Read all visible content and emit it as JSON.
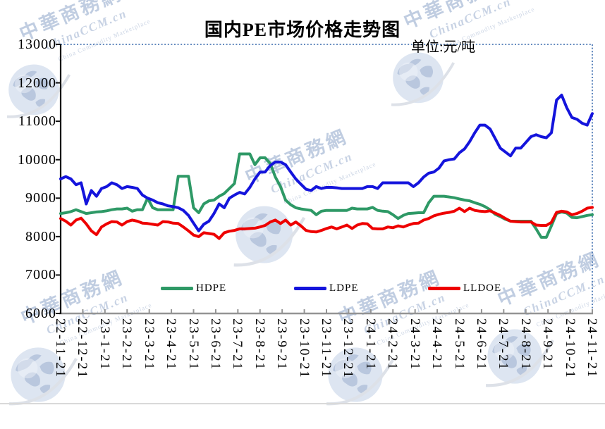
{
  "title": "国内PE市场价格走势图",
  "unit_label": "单位:元/吨",
  "watermark": {
    "cn": "中華商務網",
    "domain": "ChinaCCM.cn",
    "en": "China Commodity Marketplace"
  },
  "chart_data": {
    "type": "line",
    "title": "国内PE市场价格走势图",
    "unit": "元/吨",
    "grid": false,
    "legend_position": "bottom",
    "ylim": [
      6000,
      13000
    ],
    "y_ticks": [
      6000,
      7000,
      8000,
      9000,
      10000,
      11000,
      12000,
      13000
    ],
    "x_tick_labels": [
      "22-11-21",
      "22-12-21",
      "23-1-21",
      "23-2-21",
      "23-3-21",
      "23-4-21",
      "23-5-21",
      "23-6-21",
      "23-7-21",
      "23-8-21",
      "23-9-21",
      "23-10-21",
      "23-11-21",
      "23-12-21",
      "24-1-21",
      "24-2-21",
      "24-3-21",
      "24-4-21",
      "24-5-21",
      "24-6-21",
      "24-7-21",
      "24-8-21",
      "24-9-21",
      "24-10-21",
      "24-11-21"
    ],
    "x_note": "weekly data points from 22-11-21 to 24-11-21, prices in yuan/ton",
    "axis_colors": {
      "y_axis": "#111111",
      "x_axis": "#949494",
      "border_dotted": "#4d79b5"
    },
    "series": [
      {
        "name": "HDPE",
        "color": "#2e9966",
        "values": [
          8600,
          8620,
          8650,
          8700,
          8650,
          8600,
          8620,
          8640,
          8650,
          8670,
          8700,
          8720,
          8720,
          8740,
          8660,
          8700,
          8700,
          9000,
          8750,
          8700,
          8700,
          8700,
          8700,
          9570,
          9570,
          9570,
          8750,
          8620,
          8850,
          8930,
          8950,
          9050,
          9120,
          9250,
          9380,
          10150,
          10150,
          10150,
          9870,
          10050,
          10050,
          9900,
          9550,
          9300,
          8950,
          8830,
          8750,
          8720,
          8700,
          8680,
          8570,
          8660,
          8680,
          8680,
          8680,
          8680,
          8680,
          8740,
          8720,
          8720,
          8720,
          8760,
          8680,
          8660,
          8650,
          8570,
          8470,
          8550,
          8600,
          8610,
          8620,
          8620,
          8880,
          9050,
          9050,
          9050,
          9030,
          9010,
          8980,
          8950,
          8930,
          8880,
          8840,
          8780,
          8700,
          8580,
          8520,
          8450,
          8400,
          8400,
          8400,
          8400,
          8400,
          8200,
          7980,
          7980,
          8280,
          8600,
          8640,
          8610,
          8500,
          8490,
          8520,
          8550,
          8570
        ]
      },
      {
        "name": "LDPE",
        "color": "#1414dc",
        "values": [
          9500,
          9560,
          9500,
          9350,
          9400,
          8850,
          9200,
          9050,
          9250,
          9300,
          9400,
          9350,
          9250,
          9300,
          9280,
          9250,
          9080,
          9000,
          8950,
          8880,
          8850,
          8800,
          8780,
          8750,
          8680,
          8550,
          8350,
          8150,
          8320,
          8400,
          8600,
          8850,
          8750,
          9000,
          9080,
          9150,
          9110,
          9280,
          9500,
          9680,
          9680,
          9850,
          9940,
          9940,
          9870,
          9680,
          9500,
          9360,
          9230,
          9200,
          9300,
          9250,
          9280,
          9280,
          9270,
          9250,
          9250,
          9250,
          9250,
          9250,
          9300,
          9300,
          9250,
          9400,
          9400,
          9400,
          9400,
          9400,
          9400,
          9300,
          9400,
          9550,
          9650,
          9680,
          9780,
          9970,
          10000,
          10020,
          10180,
          10280,
          10470,
          10700,
          10900,
          10900,
          10800,
          10550,
          10300,
          10200,
          10100,
          10300,
          10300,
          10450,
          10600,
          10650,
          10600,
          10570,
          10700,
          11550,
          11680,
          11350,
          11100,
          11050,
          10950,
          10900,
          11200
        ]
      },
      {
        "name": "LLDOE",
        "color": "#ee0000",
        "values": [
          8470,
          8400,
          8300,
          8430,
          8480,
          8330,
          8150,
          8050,
          8250,
          8330,
          8390,
          8380,
          8300,
          8390,
          8430,
          8400,
          8350,
          8340,
          8320,
          8300,
          8390,
          8380,
          8350,
          8340,
          8250,
          8150,
          8040,
          8000,
          8100,
          8080,
          8060,
          7950,
          8100,
          8140,
          8160,
          8200,
          8200,
          8210,
          8220,
          8250,
          8290,
          8380,
          8430,
          8340,
          8430,
          8300,
          8380,
          8280,
          8160,
          8130,
          8120,
          8160,
          8210,
          8250,
          8200,
          8250,
          8300,
          8210,
          8300,
          8340,
          8330,
          8210,
          8200,
          8200,
          8250,
          8230,
          8280,
          8250,
          8300,
          8340,
          8350,
          8430,
          8470,
          8540,
          8580,
          8610,
          8630,
          8660,
          8740,
          8650,
          8740,
          8680,
          8660,
          8650,
          8670,
          8610,
          8550,
          8470,
          8400,
          8390,
          8380,
          8380,
          8380,
          8300,
          8290,
          8290,
          8370,
          8630,
          8660,
          8640,
          8570,
          8600,
          8660,
          8740,
          8760
        ]
      }
    ]
  }
}
